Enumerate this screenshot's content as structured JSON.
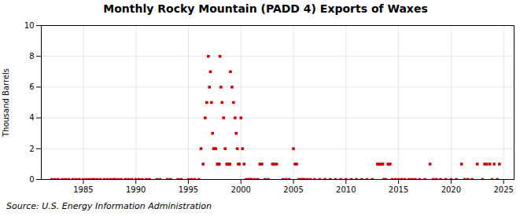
{
  "chart_data": {
    "type": "scatter",
    "title": "Monthly Rocky Mountain (PADD 4) Exports of Waxes",
    "ylabel": "Thousand Barrels",
    "source": "Source: U.S. Energy Information Administration",
    "color": "#cc0000",
    "marker": "square",
    "grid": true,
    "xlim": [
      1981.0,
      2026.0
    ],
    "xticks": [
      1985,
      1990,
      1995,
      2000,
      2005,
      2010,
      2015,
      2020,
      2025
    ],
    "ylim": [
      0,
      10
    ],
    "yticks": [
      0,
      2,
      4,
      6,
      8,
      10
    ],
    "x": [
      1982.0,
      1982.3,
      1982.6,
      1983.0,
      1983.3,
      1983.6,
      1984.0,
      1984.3,
      1984.6,
      1985.0,
      1985.3,
      1985.6,
      1985.9,
      1986.0,
      1986.3,
      1986.6,
      1987.0,
      1987.3,
      1987.6,
      1987.9,
      1988.0,
      1988.3,
      1988.6,
      1989.0,
      1989.3,
      1989.6,
      1990.0,
      1990.3,
      1990.6,
      1991.0,
      1991.3,
      1992.0,
      1992.3,
      1993.0,
      1993.3,
      1994.0,
      1994.3,
      1995.0,
      1995.3,
      1995.6,
      1996.0,
      1996.2,
      1996.4,
      1996.6,
      1996.75,
      1996.9,
      1997.0,
      1997.1,
      1997.2,
      1997.3,
      1997.4,
      1997.5,
      1997.6,
      1997.75,
      1997.85,
      1997.95,
      1998.0,
      1998.1,
      1998.2,
      1998.35,
      1998.5,
      1998.65,
      1998.75,
      1998.85,
      1998.95,
      1999.0,
      1999.15,
      1999.3,
      1999.45,
      1999.55,
      1999.65,
      1999.75,
      1999.85,
      2000.0,
      2000.15,
      2000.3,
      2000.5,
      2000.7,
      2000.9,
      2001.0,
      2001.3,
      2001.6,
      2001.8,
      2002.0,
      2002.3,
      2002.6,
      2003.0,
      2003.15,
      2003.4,
      2004.0,
      2004.3,
      2004.6,
      2005.0,
      2005.15,
      2005.3,
      2005.5,
      2005.7,
      2005.9,
      2006.0,
      2006.3,
      2006.6,
      2007.0,
      2007.5,
      2008.0,
      2008.5,
      2009.0,
      2009.5,
      2010.0,
      2010.5,
      2011.0,
      2011.5,
      2012.0,
      2012.5,
      2013.0,
      2013.1,
      2013.2,
      2013.3,
      2013.4,
      2013.5,
      2013.6,
      2013.8,
      2014.0,
      2014.1,
      2014.2,
      2014.4,
      2014.7,
      2015.0,
      2015.3,
      2015.6,
      2016.0,
      2016.3,
      2016.6,
      2017.0,
      2017.5,
      2018.0,
      2018.3,
      2018.6,
      2019.0,
      2019.5,
      2020.0,
      2020.5,
      2021.0,
      2021.3,
      2021.6,
      2022.0,
      2022.5,
      2023.0,
      2023.2,
      2023.4,
      2023.7,
      2023.9,
      2024.1,
      2024.4,
      2024.6
    ],
    "values": [
      0,
      0,
      0,
      0,
      0,
      0,
      0,
      0,
      0,
      0,
      0,
      0,
      0,
      0,
      0,
      0,
      0,
      0,
      0,
      0,
      0,
      0,
      0,
      0,
      0,
      0,
      0,
      0,
      0,
      0,
      0,
      0,
      0,
      0,
      0,
      0,
      0,
      0,
      0,
      0,
      0,
      2,
      1,
      4,
      5,
      8,
      6,
      7,
      5,
      3,
      2,
      2,
      2,
      1,
      1,
      1,
      8,
      6,
      5,
      4,
      2,
      1,
      1,
      1,
      1,
      7,
      6,
      5,
      4,
      3,
      2,
      1,
      1,
      4,
      2,
      1,
      0,
      0,
      0,
      0,
      0,
      0,
      1,
      1,
      0,
      0,
      1,
      1,
      1,
      0,
      0,
      0,
      2,
      1,
      1,
      0,
      0,
      0,
      0,
      0,
      0,
      0,
      0,
      0,
      0,
      0,
      0,
      0,
      0,
      0,
      0,
      0,
      0,
      1,
      1,
      1,
      1,
      1,
      1,
      0,
      0,
      1,
      1,
      1,
      0,
      0,
      0,
      0,
      0,
      0,
      0,
      0,
      0,
      0,
      1,
      0,
      0,
      0,
      0,
      0,
      0,
      1,
      0,
      0,
      0,
      1,
      0,
      1,
      1,
      1,
      0,
      1,
      0,
      1
    ]
  }
}
